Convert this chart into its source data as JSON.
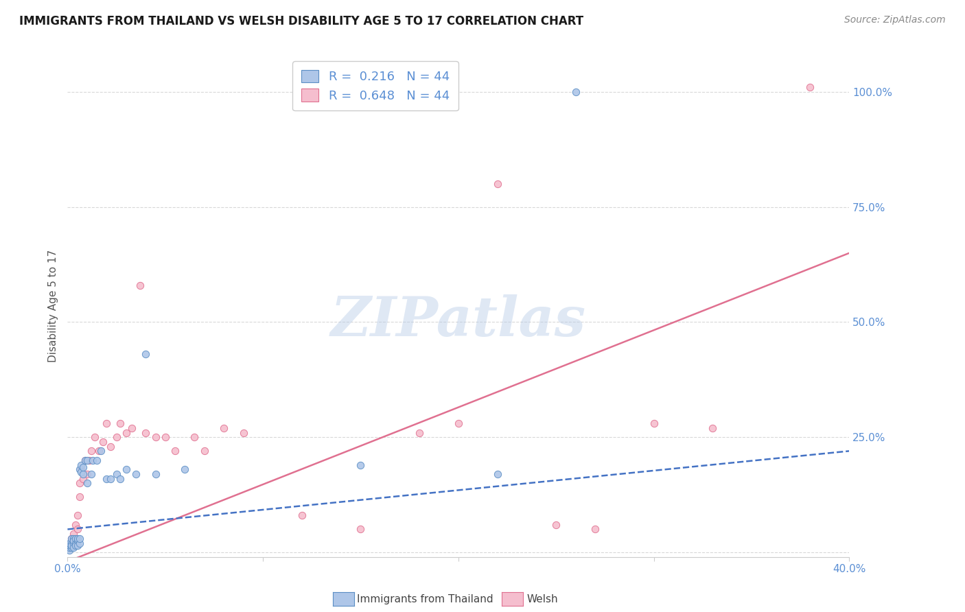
{
  "title": "IMMIGRANTS FROM THAILAND VS WELSH DISABILITY AGE 5 TO 17 CORRELATION CHART",
  "source": "Source: ZipAtlas.com",
  "ylabel": "Disability Age 5 to 17",
  "right_yticks": [
    "100.0%",
    "75.0%",
    "50.0%",
    "25.0%"
  ],
  "right_ytick_vals": [
    1.0,
    0.75,
    0.5,
    0.25
  ],
  "xlim": [
    0.0,
    0.4
  ],
  "ylim": [
    -0.01,
    1.08
  ],
  "legend_line1": "R =  0.216   N = 44",
  "legend_line2": "R =  0.648   N = 44",
  "watermark": "ZIPatlas",
  "blue_scatter_x": [
    0.001,
    0.001,
    0.001,
    0.001,
    0.002,
    0.002,
    0.002,
    0.002,
    0.003,
    0.003,
    0.003,
    0.003,
    0.004,
    0.004,
    0.004,
    0.005,
    0.005,
    0.005,
    0.006,
    0.006,
    0.006,
    0.007,
    0.007,
    0.008,
    0.008,
    0.009,
    0.01,
    0.01,
    0.012,
    0.013,
    0.015,
    0.017,
    0.02,
    0.022,
    0.025,
    0.027,
    0.03,
    0.035,
    0.04,
    0.045,
    0.06,
    0.15,
    0.22,
    0.26
  ],
  "blue_scatter_y": [
    0.005,
    0.01,
    0.015,
    0.02,
    0.01,
    0.02,
    0.03,
    0.015,
    0.02,
    0.03,
    0.01,
    0.025,
    0.02,
    0.03,
    0.015,
    0.025,
    0.015,
    0.03,
    0.02,
    0.03,
    0.18,
    0.175,
    0.19,
    0.17,
    0.185,
    0.2,
    0.15,
    0.2,
    0.17,
    0.2,
    0.2,
    0.22,
    0.16,
    0.16,
    0.17,
    0.16,
    0.18,
    0.17,
    0.43,
    0.17,
    0.18,
    0.19,
    0.17,
    1.0
  ],
  "pink_scatter_x": [
    0.001,
    0.002,
    0.002,
    0.003,
    0.003,
    0.004,
    0.005,
    0.005,
    0.006,
    0.006,
    0.007,
    0.008,
    0.009,
    0.01,
    0.011,
    0.012,
    0.014,
    0.016,
    0.018,
    0.02,
    0.022,
    0.025,
    0.027,
    0.03,
    0.033,
    0.037,
    0.04,
    0.045,
    0.05,
    0.055,
    0.065,
    0.07,
    0.08,
    0.09,
    0.12,
    0.15,
    0.18,
    0.2,
    0.22,
    0.25,
    0.27,
    0.3,
    0.33,
    0.38
  ],
  "pink_scatter_y": [
    0.01,
    0.02,
    0.03,
    0.02,
    0.04,
    0.06,
    0.08,
    0.05,
    0.12,
    0.15,
    0.18,
    0.16,
    0.2,
    0.17,
    0.2,
    0.22,
    0.25,
    0.22,
    0.24,
    0.28,
    0.23,
    0.25,
    0.28,
    0.26,
    0.27,
    0.58,
    0.26,
    0.25,
    0.25,
    0.22,
    0.25,
    0.22,
    0.27,
    0.26,
    0.08,
    0.05,
    0.26,
    0.28,
    0.8,
    0.06,
    0.05,
    0.28,
    0.27,
    1.01
  ],
  "blue_line_x": [
    0.0,
    0.4
  ],
  "blue_line_y": [
    0.05,
    0.22
  ],
  "pink_line_x": [
    0.0,
    0.4
  ],
  "pink_line_y": [
    -0.02,
    0.65
  ],
  "blue_color": "#aec6e8",
  "blue_edge_color": "#5b8ec4",
  "blue_line_color": "#4472c4",
  "pink_color": "#f5bece",
  "pink_edge_color": "#e07090",
  "pink_line_color": "#e07090",
  "grid_color": "#d8d8d8",
  "background_color": "#ffffff",
  "title_fontsize": 12,
  "tick_label_color": "#5b8fd4",
  "ylabel_color": "#555555",
  "bottom_legend_labels": [
    "Immigrants from Thailand",
    "Welsh"
  ]
}
